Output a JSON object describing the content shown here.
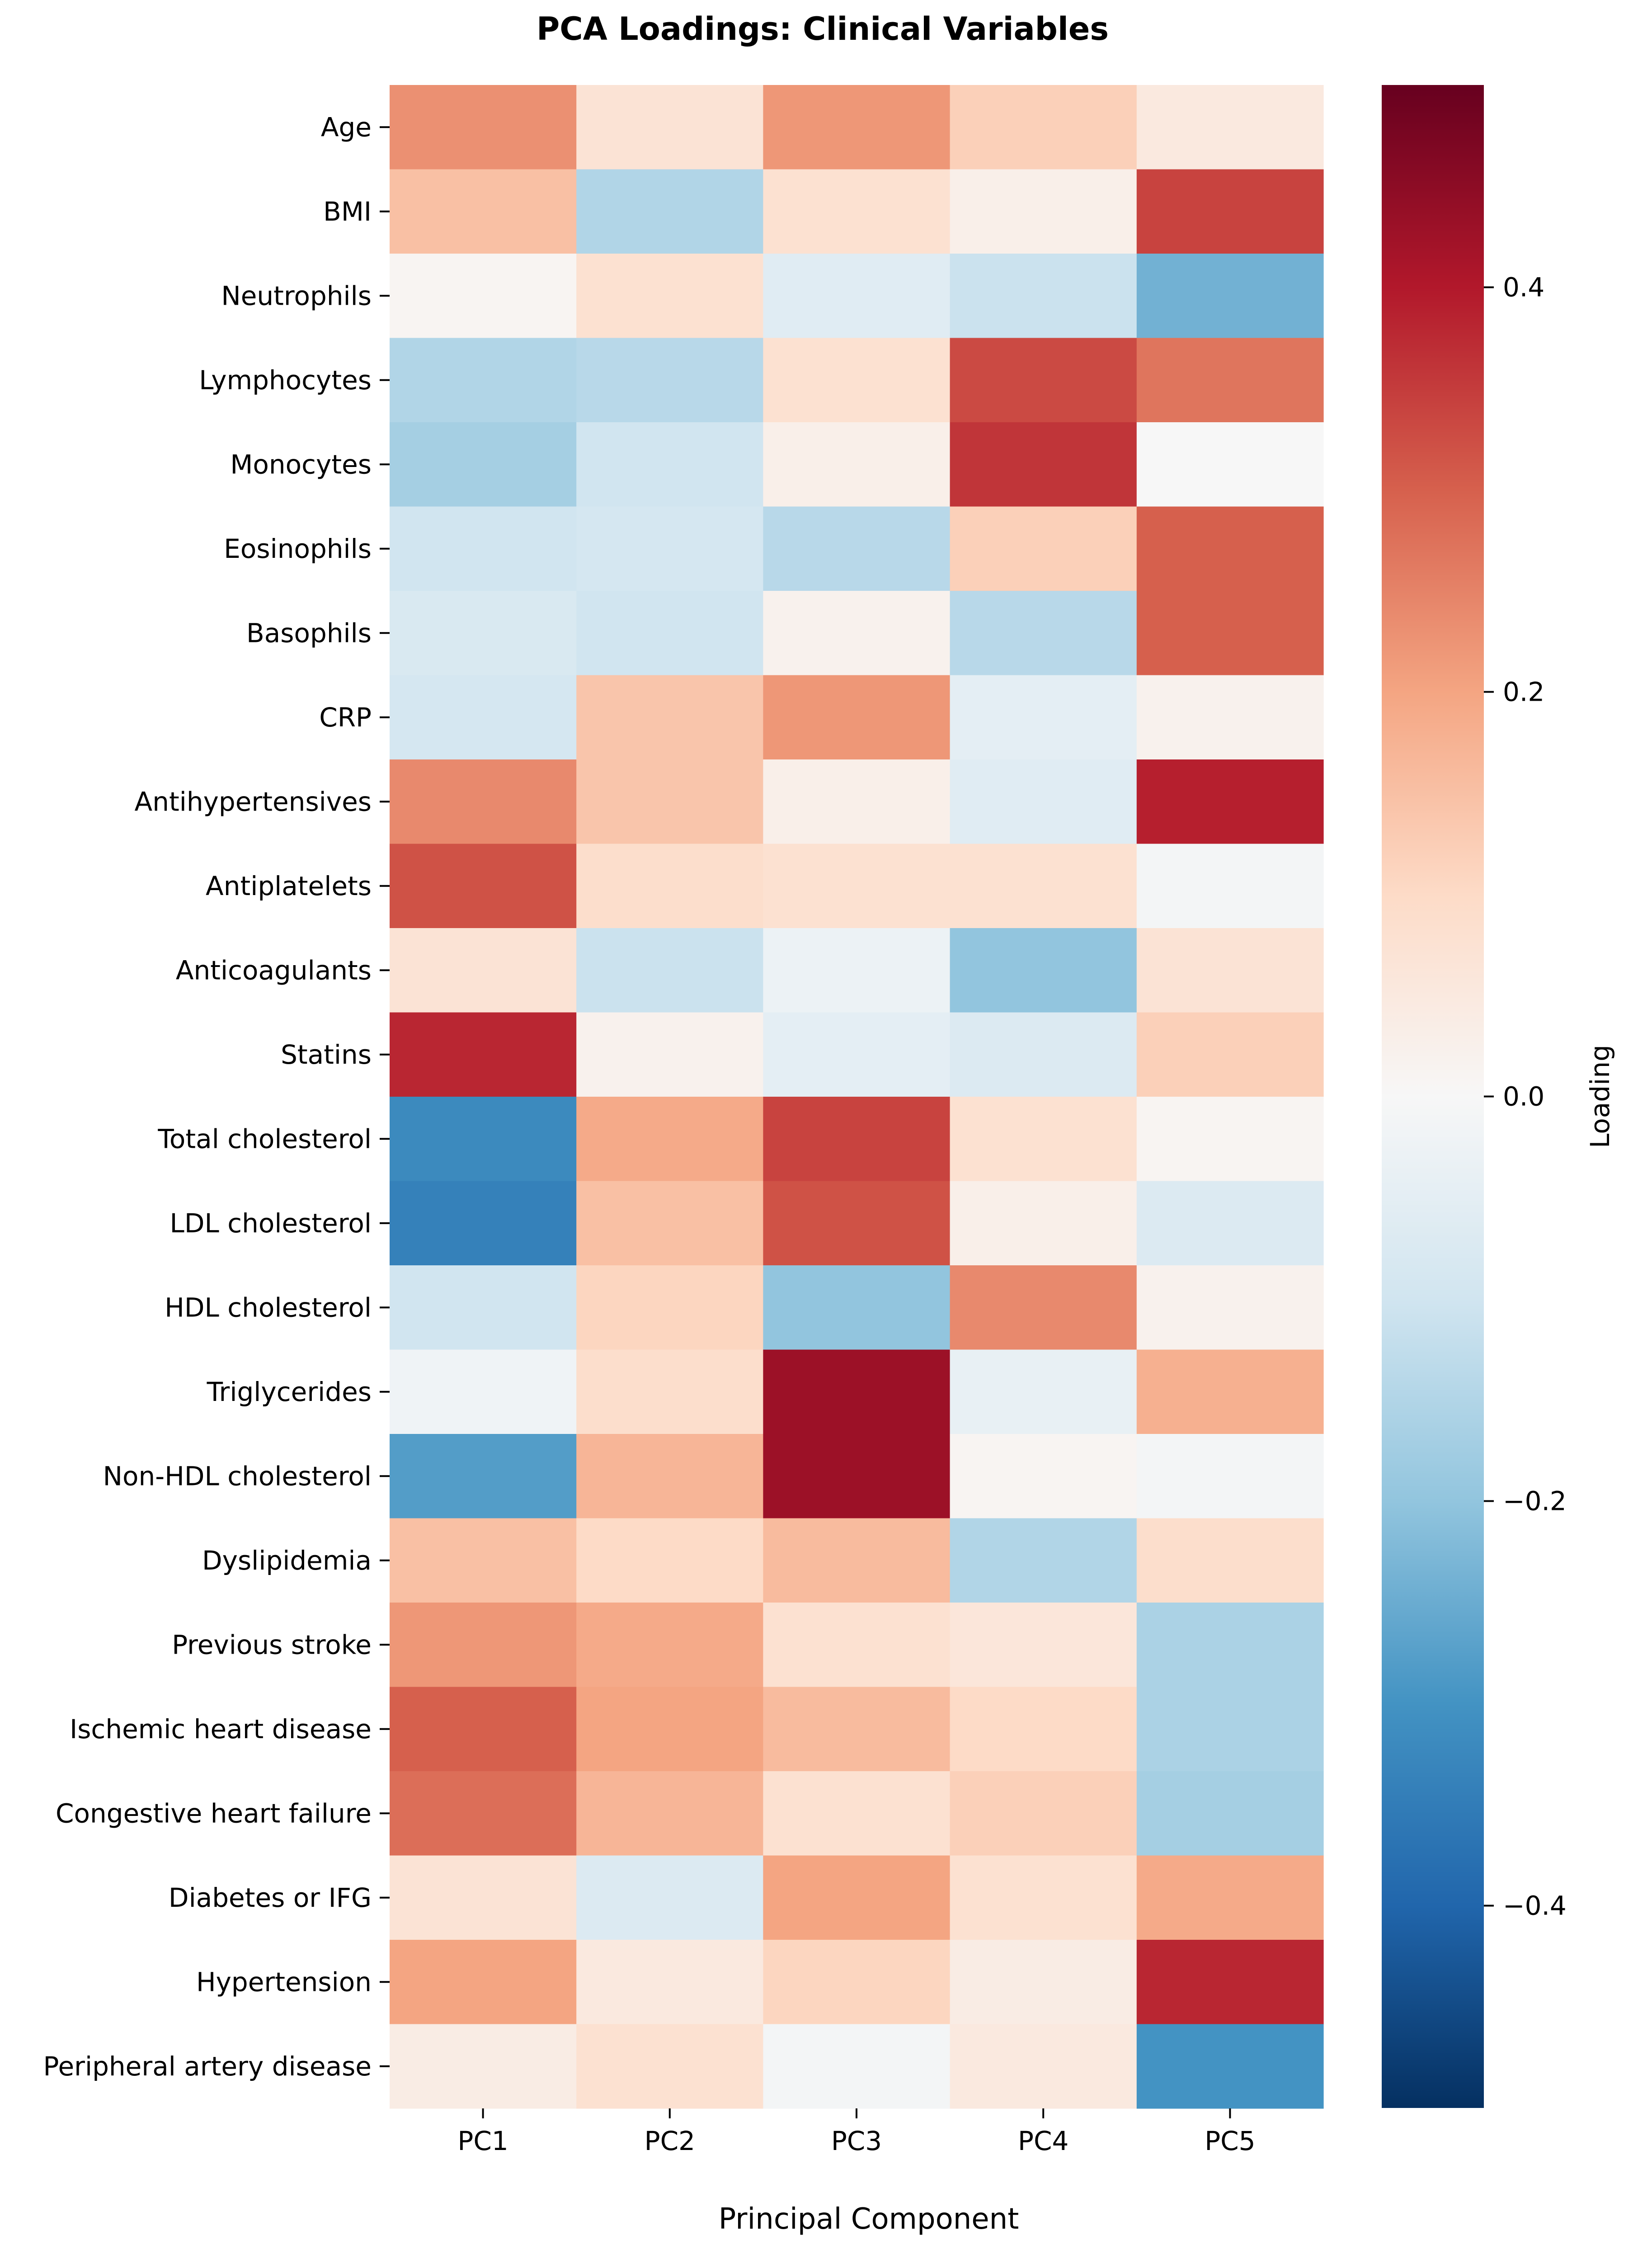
{
  "chart_data": {
    "type": "heatmap",
    "title": "PCA Loadings: Clinical Variables",
    "xlabel": "Principal Component",
    "ylabel": "",
    "colorbar_label": "Loading",
    "colormap": "RdBu_r",
    "vmin": -0.5,
    "vmax": 0.5,
    "colorbar_ticks": [
      0.4,
      0.2,
      0.0,
      -0.2,
      -0.4
    ],
    "colorbar_tick_labels": [
      "0.4",
      "0.2",
      "0.0",
      "−0.2",
      "−0.4"
    ],
    "columns": [
      "PC1",
      "PC2",
      "PC3",
      "PC4",
      "PC5"
    ],
    "rows": [
      "Age",
      "BMI",
      "Neutrophils",
      "Lymphocytes",
      "Monocytes",
      "Eosinophils",
      "Basophils",
      "CRP",
      "Antihypertensives",
      "Antiplatelets",
      "Anticoagulants",
      "Statins",
      "Total cholesterol",
      "LDL cholesterol",
      "HDL cholesterol",
      "Triglycerides",
      "Non-HDL cholesterol",
      "Dyslipidemia",
      "Previous stroke",
      "Ischemic heart disease",
      "Congestive heart failure",
      "Diabetes or IFG",
      "Hypertension",
      "Peripheral artery disease"
    ],
    "values": [
      [
        0.23,
        0.07,
        0.22,
        0.12,
        0.05
      ],
      [
        0.15,
        -0.15,
        0.08,
        0.03,
        0.34
      ],
      [
        0.01,
        0.08,
        -0.06,
        -0.11,
        -0.24
      ],
      [
        -0.15,
        -0.14,
        0.08,
        0.33,
        0.27
      ],
      [
        -0.17,
        -0.1,
        0.03,
        0.36,
        0.0
      ],
      [
        -0.1,
        -0.09,
        -0.14,
        0.12,
        0.3
      ],
      [
        -0.08,
        -0.1,
        0.02,
        -0.14,
        0.3
      ],
      [
        -0.09,
        0.14,
        0.22,
        -0.05,
        0.02
      ],
      [
        0.24,
        0.14,
        0.03,
        -0.06,
        0.39
      ],
      [
        0.32,
        0.09,
        0.08,
        0.08,
        -0.01
      ],
      [
        0.07,
        -0.11,
        -0.03,
        -0.2,
        0.07
      ],
      [
        0.38,
        0.02,
        -0.05,
        -0.07,
        0.12
      ],
      [
        -0.32,
        0.19,
        0.34,
        0.08,
        0.01
      ],
      [
        -0.34,
        0.15,
        0.32,
        0.03,
        -0.07
      ],
      [
        -0.1,
        0.11,
        -0.2,
        0.24,
        0.02
      ],
      [
        -0.02,
        0.09,
        0.43,
        -0.04,
        0.18
      ],
      [
        -0.28,
        0.17,
        0.43,
        0.01,
        -0.01
      ],
      [
        0.15,
        0.1,
        0.16,
        -0.15,
        0.09
      ],
      [
        0.22,
        0.19,
        0.08,
        0.06,
        -0.16
      ],
      [
        0.3,
        0.2,
        0.16,
        0.1,
        -0.16
      ],
      [
        0.28,
        0.17,
        0.08,
        0.12,
        -0.17
      ],
      [
        0.07,
        -0.07,
        0.2,
        0.08,
        0.19
      ],
      [
        0.2,
        0.05,
        0.11,
        0.04,
        0.38
      ],
      [
        0.04,
        0.08,
        -0.01,
        0.05,
        -0.3
      ]
    ]
  }
}
